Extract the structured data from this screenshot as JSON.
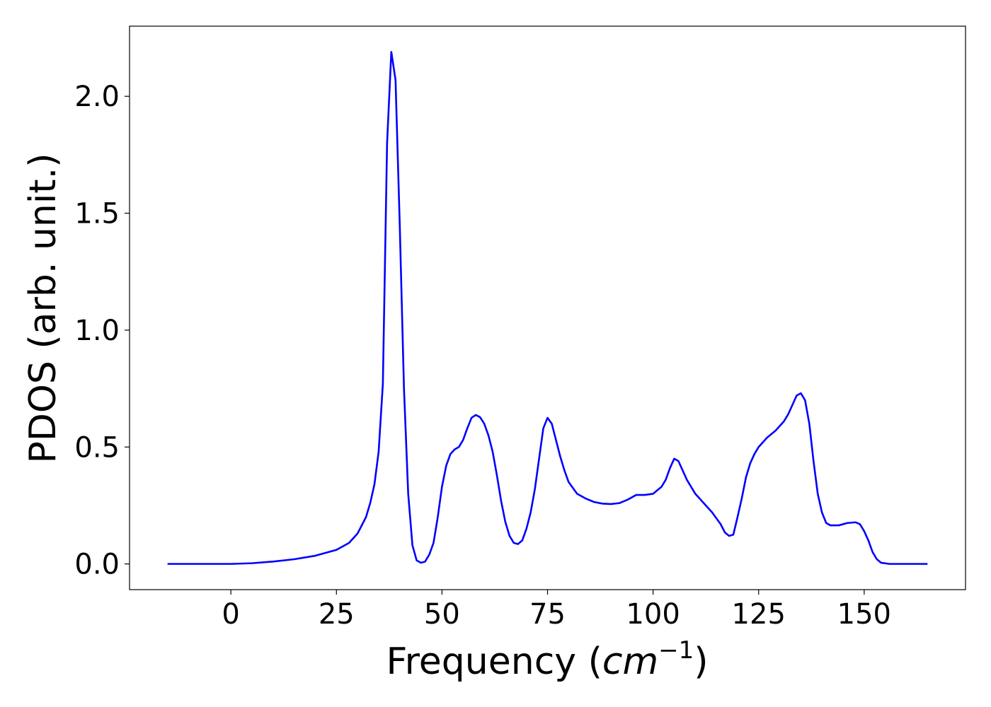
{
  "chart_data": {
    "type": "line",
    "x_label": {
      "text": "Frequency (",
      "italic": "cm",
      "sup": "−1",
      "end": ")"
    },
    "y_label": "PDOS (arb. unit.)",
    "xlim": [
      -24,
      174
    ],
    "ylim": [
      -0.11,
      2.3
    ],
    "xticks": [
      0,
      25,
      50,
      75,
      100,
      125,
      150
    ],
    "yticks": [
      {
        "value": 0,
        "label": "0.0"
      },
      0.5,
      {
        "value": 1,
        "label": "1.0"
      },
      1.5,
      {
        "value": 2,
        "label": "2.0"
      }
    ],
    "grid": false,
    "x": [
      -15,
      0,
      5,
      10,
      15,
      20,
      25,
      28,
      30,
      32,
      33,
      34,
      35,
      36,
      37,
      38,
      39,
      40,
      41,
      42,
      43,
      44,
      45,
      46,
      47,
      48,
      49,
      50,
      51,
      52,
      53,
      54,
      55,
      56,
      57,
      58,
      59,
      60,
      61,
      62,
      63,
      64,
      65,
      66,
      67,
      68,
      69,
      70,
      71,
      72,
      73,
      74,
      75,
      76,
      77,
      78,
      79,
      80,
      82,
      84,
      86,
      88,
      90,
      92,
      94,
      96,
      98,
      100,
      102,
      103,
      104,
      105,
      106,
      107,
      108,
      110,
      112,
      114,
      116,
      117,
      118,
      119,
      120,
      121,
      122,
      123,
      124,
      125,
      127,
      129,
      131,
      132,
      133,
      134,
      135,
      136,
      137,
      138,
      139,
      140,
      141,
      142,
      144,
      146,
      148,
      149,
      150,
      151,
      152,
      153,
      154,
      156,
      165
    ],
    "series": [
      {
        "color": "#0000ff",
        "values": [
          0,
          0,
          0.003,
          0.01,
          0.02,
          0.035,
          0.06,
          0.09,
          0.13,
          0.2,
          0.26,
          0.34,
          0.48,
          0.77,
          1.8,
          2.19,
          2.07,
          1.45,
          0.75,
          0.3,
          0.08,
          0.015,
          0.005,
          0.01,
          0.04,
          0.09,
          0.2,
          0.33,
          0.42,
          0.47,
          0.49,
          0.5,
          0.53,
          0.58,
          0.625,
          0.637,
          0.628,
          0.6,
          0.55,
          0.48,
          0.38,
          0.27,
          0.18,
          0.12,
          0.09,
          0.085,
          0.1,
          0.15,
          0.22,
          0.32,
          0.45,
          0.58,
          0.625,
          0.6,
          0.53,
          0.46,
          0.4,
          0.35,
          0.3,
          0.28,
          0.265,
          0.258,
          0.256,
          0.26,
          0.275,
          0.295,
          0.295,
          0.3,
          0.33,
          0.36,
          0.41,
          0.45,
          0.44,
          0.4,
          0.36,
          0.3,
          0.26,
          0.22,
          0.17,
          0.135,
          0.12,
          0.125,
          0.2,
          0.28,
          0.37,
          0.43,
          0.47,
          0.5,
          0.54,
          0.57,
          0.61,
          0.64,
          0.68,
          0.72,
          0.73,
          0.7,
          0.6,
          0.44,
          0.3,
          0.22,
          0.175,
          0.165,
          0.165,
          0.175,
          0.178,
          0.17,
          0.14,
          0.1,
          0.05,
          0.02,
          0.005,
          0,
          0
        ]
      }
    ]
  }
}
